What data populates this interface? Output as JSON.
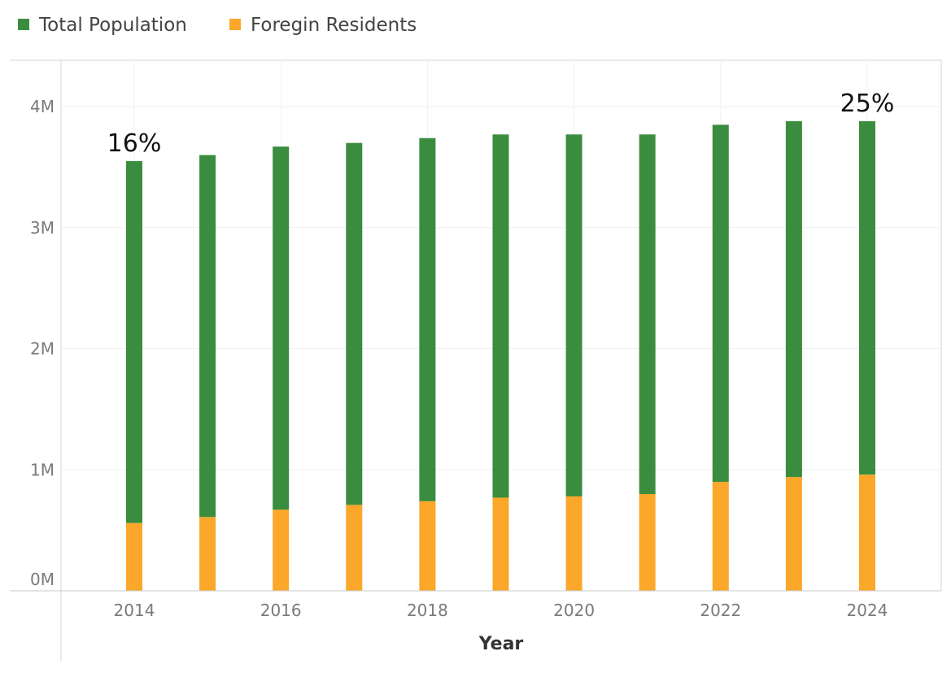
{
  "chart_data": {
    "type": "bar",
    "stacked": true,
    "x": [
      2014,
      2015,
      2016,
      2017,
      2018,
      2019,
      2020,
      2021,
      2022,
      2023,
      2024
    ],
    "x_tick_labels": [
      "2014",
      "2016",
      "2018",
      "2020",
      "2022",
      "2024"
    ],
    "x_tick_values": [
      2014,
      2016,
      2018,
      2020,
      2022,
      2024
    ],
    "xlabel": "Year",
    "ylabel": "",
    "ylim": [
      0,
      4400000
    ],
    "y_ticks": [
      {
        "value": 0,
        "label": "0M"
      },
      {
        "value": 1000000,
        "label": "1M"
      },
      {
        "value": 2000000,
        "label": "2M"
      },
      {
        "value": 3000000,
        "label": "3M"
      },
      {
        "value": 4000000,
        "label": "4M"
      }
    ],
    "grid": true,
    "legend_position": "top-left",
    "series": [
      {
        "name": "Foregin Residents",
        "color": "#FBA72A",
        "values": [
          560000,
          610000,
          670000,
          710000,
          740000,
          770000,
          780000,
          800000,
          900000,
          940000,
          960000
        ]
      },
      {
        "name": "Total Population",
        "color": "#3A8D3E",
        "values": [
          2990000,
          2990000,
          3000000,
          2990000,
          3000000,
          3000000,
          2990000,
          2970000,
          2950000,
          2940000,
          2920000
        ]
      }
    ],
    "annotations": [
      {
        "x": 2014,
        "text": "16%"
      },
      {
        "x": 2024,
        "text": "25%"
      }
    ]
  }
}
